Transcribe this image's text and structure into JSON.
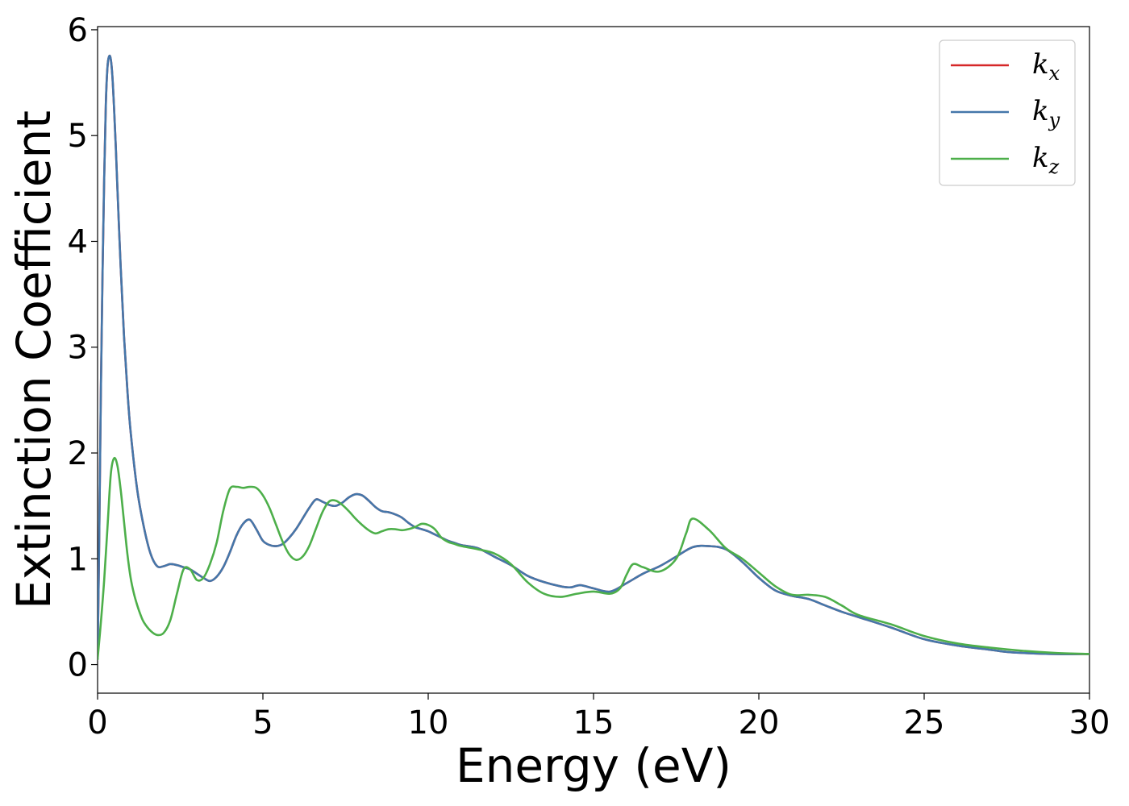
{
  "chart_data": {
    "type": "line",
    "title": "",
    "xlabel": "Energy (eV)",
    "ylabel": "Extinction Coefficient",
    "xlim": [
      0,
      30
    ],
    "ylim": [
      -0.27,
      6.03
    ],
    "xticks": [
      0,
      5,
      10,
      15,
      20,
      25,
      30
    ],
    "yticks": [
      0,
      1,
      2,
      3,
      4,
      5,
      6
    ],
    "grid": false,
    "legend_position": "top-right",
    "series": [
      {
        "name": "k_x",
        "label_base": "k",
        "label_sub": "x",
        "color": "#d62728",
        "x": [
          0,
          0.05,
          0.1,
          0.15,
          0.2,
          0.25,
          0.3,
          0.35,
          0.4,
          0.45,
          0.5,
          0.55,
          0.6,
          0.7,
          0.8,
          0.9,
          1.0,
          1.2,
          1.4,
          1.6,
          1.8,
          2.0,
          2.2,
          2.4,
          2.6,
          2.8,
          3.0,
          3.2,
          3.4,
          3.6,
          3.8,
          4.0,
          4.2,
          4.4,
          4.6,
          4.8,
          5.0,
          5.2,
          5.4,
          5.6,
          5.8,
          6.0,
          6.2,
          6.4,
          6.6,
          6.8,
          7.0,
          7.2,
          7.4,
          7.6,
          7.8,
          8.0,
          8.2,
          8.4,
          8.6,
          8.8,
          9.0,
          9.2,
          9.4,
          9.6,
          9.8,
          10.0,
          10.2,
          10.4,
          10.6,
          10.8,
          11.0,
          11.5,
          12.0,
          12.5,
          13.0,
          13.5,
          14.0,
          14.3,
          14.6,
          15.0,
          15.5,
          16.0,
          16.5,
          17.0,
          17.5,
          18.0,
          18.5,
          19.0,
          19.5,
          20.0,
          20.5,
          21.0,
          21.5,
          22.0,
          22.5,
          23.0,
          24.0,
          25.0,
          26.0,
          27.0,
          27.5,
          28.0,
          29.0,
          30.0
        ],
        "y": [
          0.05,
          1.2,
          2.6,
          3.7,
          4.6,
          5.3,
          5.65,
          5.75,
          5.72,
          5.55,
          5.25,
          4.9,
          4.5,
          3.75,
          3.1,
          2.6,
          2.2,
          1.65,
          1.3,
          1.05,
          0.93,
          0.93,
          0.95,
          0.94,
          0.92,
          0.9,
          0.86,
          0.82,
          0.79,
          0.83,
          0.92,
          1.06,
          1.22,
          1.33,
          1.37,
          1.28,
          1.17,
          1.13,
          1.12,
          1.14,
          1.2,
          1.28,
          1.38,
          1.48,
          1.56,
          1.54,
          1.51,
          1.5,
          1.53,
          1.58,
          1.61,
          1.6,
          1.55,
          1.49,
          1.45,
          1.44,
          1.42,
          1.39,
          1.34,
          1.3,
          1.28,
          1.26,
          1.23,
          1.2,
          1.17,
          1.15,
          1.13,
          1.1,
          1.02,
          0.94,
          0.84,
          0.78,
          0.74,
          0.73,
          0.75,
          0.72,
          0.69,
          0.77,
          0.86,
          0.93,
          1.02,
          1.11,
          1.12,
          1.09,
          0.97,
          0.82,
          0.7,
          0.65,
          0.62,
          0.56,
          0.5,
          0.45,
          0.35,
          0.24,
          0.18,
          0.14,
          0.12,
          0.11,
          0.1,
          0.1
        ]
      },
      {
        "name": "k_y",
        "label_base": "k",
        "label_sub": "y",
        "color": "#4477aa",
        "x": [
          0,
          0.05,
          0.1,
          0.15,
          0.2,
          0.25,
          0.3,
          0.35,
          0.4,
          0.45,
          0.5,
          0.55,
          0.6,
          0.7,
          0.8,
          0.9,
          1.0,
          1.2,
          1.4,
          1.6,
          1.8,
          2.0,
          2.2,
          2.4,
          2.6,
          2.8,
          3.0,
          3.2,
          3.4,
          3.6,
          3.8,
          4.0,
          4.2,
          4.4,
          4.6,
          4.8,
          5.0,
          5.2,
          5.4,
          5.6,
          5.8,
          6.0,
          6.2,
          6.4,
          6.6,
          6.8,
          7.0,
          7.2,
          7.4,
          7.6,
          7.8,
          8.0,
          8.2,
          8.4,
          8.6,
          8.8,
          9.0,
          9.2,
          9.4,
          9.6,
          9.8,
          10.0,
          10.2,
          10.4,
          10.6,
          10.8,
          11.0,
          11.5,
          12.0,
          12.5,
          13.0,
          13.5,
          14.0,
          14.3,
          14.6,
          15.0,
          15.5,
          16.0,
          16.5,
          17.0,
          17.5,
          18.0,
          18.5,
          19.0,
          19.5,
          20.0,
          20.5,
          21.0,
          21.5,
          22.0,
          22.5,
          23.0,
          24.0,
          25.0,
          26.0,
          27.0,
          27.5,
          28.0,
          29.0,
          30.0
        ],
        "y": [
          0.05,
          1.2,
          2.6,
          3.7,
          4.6,
          5.3,
          5.65,
          5.75,
          5.72,
          5.55,
          5.25,
          4.9,
          4.5,
          3.75,
          3.1,
          2.6,
          2.2,
          1.65,
          1.3,
          1.05,
          0.93,
          0.93,
          0.95,
          0.94,
          0.92,
          0.9,
          0.86,
          0.82,
          0.79,
          0.83,
          0.92,
          1.06,
          1.22,
          1.33,
          1.37,
          1.28,
          1.17,
          1.13,
          1.12,
          1.14,
          1.2,
          1.28,
          1.38,
          1.48,
          1.56,
          1.54,
          1.51,
          1.5,
          1.53,
          1.58,
          1.61,
          1.6,
          1.55,
          1.49,
          1.45,
          1.44,
          1.42,
          1.39,
          1.34,
          1.3,
          1.28,
          1.26,
          1.23,
          1.2,
          1.17,
          1.15,
          1.13,
          1.1,
          1.02,
          0.94,
          0.84,
          0.78,
          0.74,
          0.73,
          0.75,
          0.72,
          0.69,
          0.77,
          0.86,
          0.93,
          1.02,
          1.11,
          1.12,
          1.09,
          0.97,
          0.82,
          0.7,
          0.65,
          0.62,
          0.56,
          0.5,
          0.45,
          0.35,
          0.24,
          0.18,
          0.14,
          0.12,
          0.11,
          0.1,
          0.1
        ]
      },
      {
        "name": "k_z",
        "label_base": "k",
        "label_sub": "z",
        "color": "#4daf4a",
        "x": [
          0,
          0.1,
          0.2,
          0.3,
          0.4,
          0.5,
          0.6,
          0.7,
          0.8,
          0.9,
          1.0,
          1.1,
          1.2,
          1.3,
          1.4,
          1.6,
          1.8,
          2.0,
          2.2,
          2.4,
          2.6,
          2.8,
          3.0,
          3.2,
          3.4,
          3.6,
          3.8,
          4.0,
          4.2,
          4.4,
          4.6,
          4.8,
          5.0,
          5.2,
          5.4,
          5.6,
          5.8,
          6.0,
          6.2,
          6.4,
          6.6,
          6.8,
          7.0,
          7.2,
          7.4,
          7.6,
          7.8,
          8.0,
          8.2,
          8.4,
          8.6,
          8.8,
          9.0,
          9.2,
          9.4,
          9.6,
          9.8,
          10.0,
          10.2,
          10.4,
          10.6,
          10.8,
          11.0,
          11.5,
          12.0,
          12.5,
          13.0,
          13.5,
          14.0,
          14.5,
          15.0,
          15.5,
          15.8,
          16.0,
          16.2,
          16.5,
          17.0,
          17.5,
          17.8,
          18.0,
          18.5,
          19.0,
          19.5,
          20.0,
          20.5,
          21.0,
          21.5,
          22.0,
          22.5,
          23.0,
          24.0,
          25.0,
          26.0,
          27.0,
          28.0,
          29.0,
          30.0
        ],
        "y": [
          0.05,
          0.4,
          0.8,
          1.3,
          1.8,
          1.95,
          1.88,
          1.65,
          1.35,
          1.05,
          0.82,
          0.67,
          0.56,
          0.47,
          0.4,
          0.32,
          0.28,
          0.3,
          0.42,
          0.67,
          0.9,
          0.9,
          0.8,
          0.82,
          0.95,
          1.15,
          1.45,
          1.66,
          1.68,
          1.67,
          1.68,
          1.67,
          1.6,
          1.48,
          1.32,
          1.16,
          1.04,
          0.99,
          1.02,
          1.12,
          1.28,
          1.44,
          1.54,
          1.55,
          1.51,
          1.45,
          1.38,
          1.32,
          1.27,
          1.24,
          1.26,
          1.28,
          1.28,
          1.27,
          1.28,
          1.3,
          1.33,
          1.32,
          1.28,
          1.2,
          1.16,
          1.14,
          1.12,
          1.09,
          1.05,
          0.95,
          0.78,
          0.67,
          0.64,
          0.67,
          0.69,
          0.67,
          0.72,
          0.85,
          0.95,
          0.92,
          0.88,
          1.0,
          1.24,
          1.38,
          1.27,
          1.1,
          1.0,
          0.87,
          0.74,
          0.66,
          0.66,
          0.64,
          0.56,
          0.47,
          0.38,
          0.27,
          0.2,
          0.16,
          0.13,
          0.11,
          0.1
        ]
      }
    ]
  }
}
